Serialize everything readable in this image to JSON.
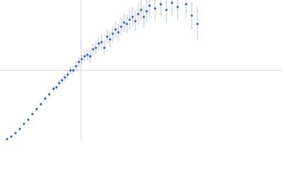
{
  "chart_data": {
    "type": "scatter",
    "color": "#3565c0",
    "error_color": "#b3c4e6",
    "xlim": [
      0,
      1
    ],
    "ylim": [
      0,
      1
    ],
    "xgrid": [
      0.2875
    ],
    "ygrid": [
      0.5
    ],
    "x": [
      0.025,
      0.04,
      0.055,
      0.07,
      0.085,
      0.1,
      0.115,
      0.13,
      0.145,
      0.16,
      0.175,
      0.19,
      0.2,
      0.21,
      0.22,
      0.23,
      0.24,
      0.25,
      0.26,
      0.27,
      0.28,
      0.29,
      0.3,
      0.31,
      0.32,
      0.33,
      0.34,
      0.35,
      0.36,
      0.37,
      0.38,
      0.39,
      0.4,
      0.41,
      0.42,
      0.43,
      0.44,
      0.45,
      0.46,
      0.47,
      0.48,
      0.49,
      0.5,
      0.51,
      0.52,
      0.53,
      0.55,
      0.57,
      0.59,
      0.61,
      0.63,
      0.66,
      0.68,
      0.7
    ],
    "values": [
      0.012,
      0.03,
      0.055,
      0.085,
      0.12,
      0.15,
      0.19,
      0.225,
      0.26,
      0.3,
      0.33,
      0.37,
      0.38,
      0.41,
      0.43,
      0.45,
      0.47,
      0.5,
      0.5,
      0.53,
      0.56,
      0.58,
      0.6,
      0.61,
      0.6,
      0.65,
      0.66,
      0.69,
      0.7,
      0.66,
      0.74,
      0.72,
      0.76,
      0.79,
      0.77,
      0.81,
      0.84,
      0.83,
      0.86,
      0.88,
      0.85,
      0.9,
      0.93,
      0.88,
      0.92,
      0.96,
      0.94,
      0.97,
      0.93,
      0.98,
      0.95,
      0.97,
      0.89,
      0.83
    ],
    "errors": [
      0.003,
      0.004,
      0.005,
      0.006,
      0.007,
      0.008,
      0.01,
      0.012,
      0.014,
      0.016,
      0.018,
      0.02,
      0.022,
      0.024,
      0.025,
      0.027,
      0.028,
      0.03,
      0.031,
      0.033,
      0.035,
      0.036,
      0.038,
      0.04,
      0.042,
      0.044,
      0.046,
      0.048,
      0.05,
      0.052,
      0.054,
      0.056,
      0.058,
      0.06,
      0.062,
      0.064,
      0.066,
      0.068,
      0.07,
      0.072,
      0.074,
      0.076,
      0.078,
      0.08,
      0.082,
      0.084,
      0.086,
      0.088,
      0.09,
      0.092,
      0.094,
      0.096,
      0.1,
      0.12
    ]
  }
}
